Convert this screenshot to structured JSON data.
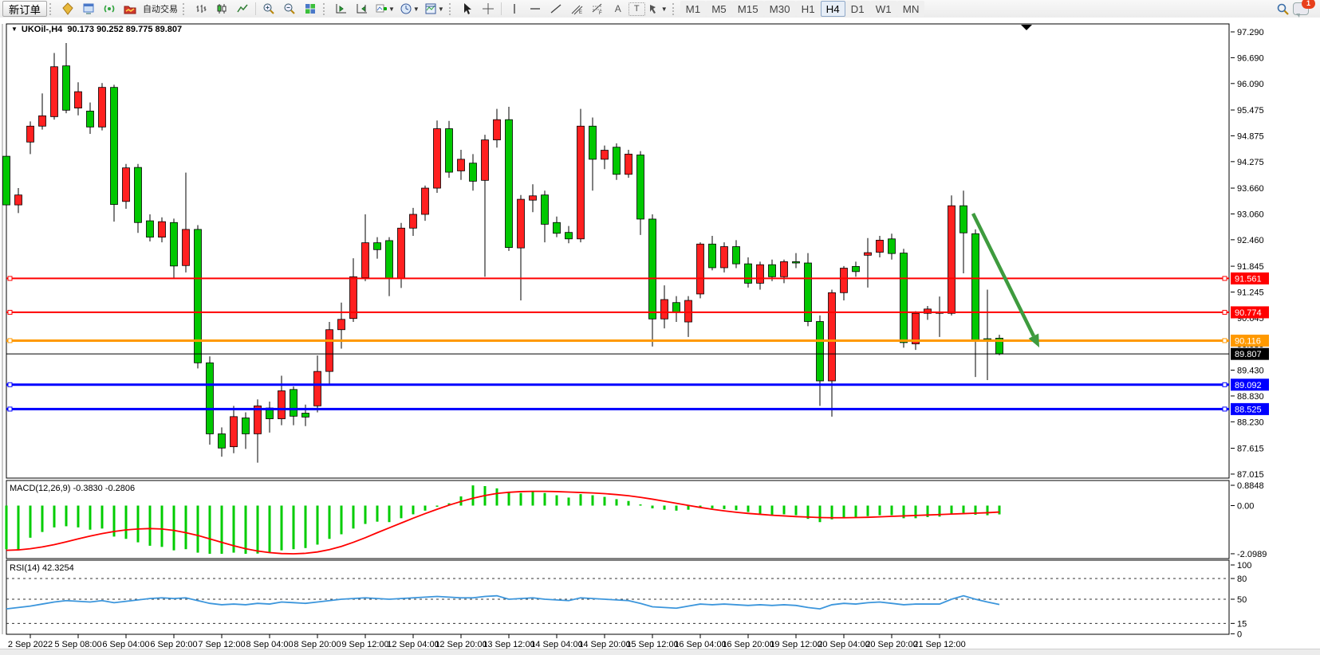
{
  "toolbar": {
    "new_order_label": "新订单",
    "auto_trading_label": "自动交易",
    "timeframes": [
      "M1",
      "M5",
      "M15",
      "M30",
      "H1",
      "H4",
      "D1",
      "W1",
      "MN"
    ],
    "active_timeframe": "H4",
    "notification_count": "1",
    "text_tool_label": "A",
    "label_tool_label": "T"
  },
  "chart": {
    "symbol": "UKOil-,H4",
    "ohlc_line": "90.173 90.252 89.775 89.807",
    "dropdown_marker": "▼",
    "colors": {
      "up": "#FF2020",
      "down": "#00C800",
      "wick": "#000000"
    },
    "price_axis_ticks": [
      "97.290",
      "96.690",
      "96.090",
      "95.475",
      "94.875",
      "94.275",
      "93.660",
      "93.060",
      "92.460",
      "91.845",
      "91.245",
      "90.645",
      "90.030",
      "89.430",
      "88.830",
      "88.230",
      "87.615",
      "87.015"
    ],
    "hlines": [
      {
        "price": 91.561,
        "label": "91.561",
        "color": "#FF0000",
        "w": 2
      },
      {
        "price": 90.774,
        "label": "90.774",
        "color": "#FF0000",
        "w": 2
      },
      {
        "price": 90.116,
        "label": "90.116",
        "color": "#FF9900",
        "w": 3
      },
      {
        "price": 89.807,
        "label": "89.807",
        "color": "#000000",
        "w": 1,
        "bid": true
      },
      {
        "price": 89.092,
        "label": "89.092",
        "color": "#0000FF",
        "w": 3
      },
      {
        "price": 88.525,
        "label": "88.525",
        "color": "#0000FF",
        "w": 3
      }
    ],
    "candles": [
      [
        94.4,
        94.92,
        93.15,
        93.27
      ],
      [
        93.27,
        93.66,
        93.08,
        93.5
      ],
      [
        94.73,
        95.21,
        94.45,
        95.1
      ],
      [
        95.1,
        95.86,
        95.02,
        95.34
      ],
      [
        95.32,
        96.8,
        95.25,
        96.48
      ],
      [
        96.5,
        97.03,
        95.4,
        95.47
      ],
      [
        95.52,
        96.12,
        95.35,
        95.9
      ],
      [
        95.45,
        95.65,
        94.92,
        95.08
      ],
      [
        95.08,
        96.1,
        95.0,
        96.0
      ],
      [
        96.0,
        96.06,
        92.88,
        93.28
      ],
      [
        93.35,
        94.22,
        93.18,
        94.13
      ],
      [
        94.14,
        94.22,
        92.62,
        92.86
      ],
      [
        92.9,
        93.05,
        92.42,
        92.52
      ],
      [
        92.52,
        92.98,
        92.4,
        92.88
      ],
      [
        92.86,
        92.95,
        91.55,
        91.85
      ],
      [
        91.86,
        94.02,
        91.7,
        92.7
      ],
      [
        92.7,
        92.8,
        89.47,
        89.6
      ],
      [
        89.6,
        89.75,
        87.7,
        87.95
      ],
      [
        87.95,
        88.1,
        87.42,
        87.62
      ],
      [
        87.65,
        88.6,
        87.5,
        88.35
      ],
      [
        88.32,
        88.45,
        87.6,
        87.95
      ],
      [
        87.95,
        88.75,
        87.28,
        88.6
      ],
      [
        88.55,
        88.7,
        87.98,
        88.3
      ],
      [
        88.3,
        89.3,
        88.15,
        88.95
      ],
      [
        88.98,
        89.05,
        88.15,
        88.36
      ],
      [
        88.43,
        88.63,
        88.13,
        88.34
      ],
      [
        88.6,
        89.77,
        88.45,
        89.4
      ],
      [
        89.4,
        90.55,
        89.1,
        90.37
      ],
      [
        90.37,
        91.0,
        89.93,
        90.61
      ],
      [
        90.63,
        92.03,
        90.55,
        91.6
      ],
      [
        91.58,
        93.05,
        91.5,
        92.39
      ],
      [
        92.39,
        92.52,
        92.02,
        92.23
      ],
      [
        92.44,
        92.52,
        91.15,
        91.56
      ],
      [
        91.56,
        92.85,
        91.34,
        92.73
      ],
      [
        92.73,
        93.2,
        92.55,
        93.05
      ],
      [
        93.05,
        93.72,
        92.9,
        93.66
      ],
      [
        93.66,
        95.23,
        93.55,
        95.04
      ],
      [
        95.04,
        95.22,
        93.9,
        94.03
      ],
      [
        94.06,
        94.55,
        93.85,
        94.33
      ],
      [
        94.24,
        94.45,
        93.6,
        93.82
      ],
      [
        93.84,
        94.9,
        91.6,
        94.78
      ],
      [
        94.78,
        95.5,
        94.6,
        95.25
      ],
      [
        95.25,
        95.55,
        92.2,
        92.28
      ],
      [
        92.27,
        93.5,
        91.05,
        93.4
      ],
      [
        93.38,
        93.75,
        93.1,
        93.48
      ],
      [
        93.5,
        93.6,
        92.4,
        92.82
      ],
      [
        92.86,
        93.0,
        92.52,
        92.61
      ],
      [
        92.63,
        92.78,
        92.38,
        92.48
      ],
      [
        92.48,
        95.5,
        92.4,
        95.1
      ],
      [
        95.1,
        95.3,
        93.6,
        94.33
      ],
      [
        94.33,
        94.65,
        94.1,
        94.54
      ],
      [
        94.61,
        94.7,
        93.85,
        93.98
      ],
      [
        93.98,
        94.55,
        93.9,
        94.45
      ],
      [
        94.43,
        94.52,
        92.57,
        92.94
      ],
      [
        92.94,
        93.05,
        89.98,
        90.62
      ],
      [
        90.62,
        91.4,
        90.4,
        91.07
      ],
      [
        91.0,
        91.15,
        90.55,
        90.77
      ],
      [
        90.55,
        91.15,
        90.2,
        91.05
      ],
      [
        91.2,
        92.4,
        91.1,
        92.36
      ],
      [
        92.36,
        92.55,
        91.75,
        91.81
      ],
      [
        91.81,
        92.4,
        91.7,
        92.3
      ],
      [
        92.3,
        92.45,
        91.8,
        91.9
      ],
      [
        91.9,
        92.05,
        91.35,
        91.45
      ],
      [
        91.45,
        91.95,
        91.3,
        91.88
      ],
      [
        91.88,
        92.0,
        91.5,
        91.6
      ],
      [
        91.6,
        92.0,
        91.45,
        91.95
      ],
      [
        91.95,
        92.15,
        91.8,
        91.92
      ],
      [
        91.92,
        92.15,
        90.45,
        90.56
      ],
      [
        90.56,
        90.7,
        88.6,
        89.18
      ],
      [
        89.18,
        91.3,
        88.35,
        91.23
      ],
      [
        91.23,
        91.85,
        91.05,
        91.8
      ],
      [
        91.84,
        91.95,
        91.6,
        91.72
      ],
      [
        92.1,
        92.5,
        91.35,
        92.16
      ],
      [
        92.17,
        92.55,
        92.05,
        92.45
      ],
      [
        92.48,
        92.6,
        92.0,
        92.14
      ],
      [
        92.15,
        92.25,
        89.95,
        90.07
      ],
      [
        90.04,
        90.8,
        89.9,
        90.75
      ],
      [
        90.75,
        90.92,
        90.6,
        90.85
      ],
      [
        90.76,
        91.14,
        90.2,
        90.78
      ],
      [
        90.75,
        93.49,
        90.7,
        93.25
      ],
      [
        93.25,
        93.6,
        91.68,
        92.62
      ],
      [
        92.6,
        92.7,
        89.27,
        90.13
      ],
      [
        90.16,
        91.3,
        89.2,
        90.12
      ],
      [
        90.173,
        90.252,
        89.775,
        89.807
      ]
    ],
    "arrow": {
      "from": [
        1220,
        268
      ],
      "to": [
        1303,
        436
      ],
      "color": "#3E9B3E"
    }
  },
  "macd": {
    "name": "MACD(12,26,9)",
    "values": "-0.3830 -0.2806",
    "axis_labels": [
      "0.8848",
      "0.00",
      "-2.0989"
    ],
    "axis_values": [
      0.8848,
      0.0,
      -2.0989
    ],
    "histogram_color": "#00CC00",
    "signal_color": "#FF0000",
    "histogram": [
      -1.9,
      -1.95,
      -1.4,
      -1.15,
      -0.95,
      -0.9,
      -0.95,
      -1.05,
      -1.0,
      -1.35,
      -1.45,
      -1.6,
      -1.75,
      -1.8,
      -1.95,
      -1.9,
      -2.05,
      -2.1,
      -2.1,
      -2.05,
      -2.1,
      -2.09,
      -2.05,
      -1.95,
      -1.9,
      -1.85,
      -1.7,
      -1.45,
      -1.25,
      -1.0,
      -0.8,
      -0.7,
      -0.72,
      -0.55,
      -0.38,
      -0.22,
      -0.05,
      0.1,
      0.4,
      0.88,
      0.85,
      0.75,
      0.6,
      0.55,
      0.6,
      0.55,
      0.45,
      0.35,
      0.5,
      0.45,
      0.38,
      0.28,
      0.2,
      0.05,
      -0.12,
      -0.18,
      -0.22,
      -0.18,
      -0.1,
      -0.12,
      -0.15,
      -0.2,
      -0.28,
      -0.35,
      -0.4,
      -0.38,
      -0.42,
      -0.58,
      -0.72,
      -0.6,
      -0.52,
      -0.5,
      -0.46,
      -0.42,
      -0.42,
      -0.55,
      -0.55,
      -0.5,
      -0.48,
      -0.35,
      -0.32,
      -0.4,
      -0.42,
      -0.383
    ],
    "signal": [
      -1.95,
      -1.93,
      -1.88,
      -1.8,
      -1.7,
      -1.58,
      -1.45,
      -1.33,
      -1.22,
      -1.13,
      -1.06,
      -1.02,
      -1.0,
      -1.02,
      -1.08,
      -1.18,
      -1.3,
      -1.45,
      -1.6,
      -1.75,
      -1.88,
      -1.98,
      -2.05,
      -2.09,
      -2.1,
      -2.08,
      -2.02,
      -1.92,
      -1.78,
      -1.6,
      -1.4,
      -1.18,
      -0.97,
      -0.76,
      -0.55,
      -0.35,
      -0.16,
      0.02,
      0.18,
      0.32,
      0.44,
      0.53,
      0.58,
      0.61,
      0.62,
      0.62,
      0.61,
      0.59,
      0.57,
      0.55,
      0.52,
      0.48,
      0.43,
      0.36,
      0.28,
      0.19,
      0.1,
      0.01,
      -0.08,
      -0.16,
      -0.23,
      -0.29,
      -0.34,
      -0.38,
      -0.42,
      -0.45,
      -0.48,
      -0.5,
      -0.52,
      -0.53,
      -0.53,
      -0.52,
      -0.51,
      -0.49,
      -0.47,
      -0.45,
      -0.43,
      -0.41,
      -0.39,
      -0.37,
      -0.35,
      -0.33,
      -0.31,
      -0.2806
    ]
  },
  "rsi": {
    "name": "RSI(14)",
    "value": "42.3254",
    "line_color": "#3C96DC",
    "levels": [
      80,
      50,
      15
    ],
    "axis_labels": [
      "100",
      "80",
      "50",
      "15",
      "0"
    ],
    "axis_values": [
      100,
      80,
      50,
      15,
      0
    ],
    "values": [
      36,
      38,
      40,
      43,
      46,
      48,
      47,
      46,
      48,
      45,
      47,
      49,
      51,
      52,
      51,
      52,
      48,
      44,
      42,
      43,
      42,
      44,
      43,
      46,
      45,
      44,
      46,
      48,
      50,
      51,
      52,
      51,
      50,
      51,
      52,
      53,
      54,
      53,
      52,
      52,
      54,
      55,
      50,
      51,
      52,
      50,
      49,
      48,
      52,
      51,
      50,
      49,
      48,
      44,
      39,
      38,
      37,
      40,
      43,
      42,
      43,
      42,
      41,
      42,
      41,
      42,
      41,
      38,
      36,
      42,
      44,
      43,
      45,
      46,
      44,
      42,
      43,
      43,
      43,
      50,
      55,
      50,
      46,
      42.3
    ]
  },
  "date_axis": [
    "2 Sep 2022",
    "5 Sep 08:00",
    "6 Sep 04:00",
    "6 Sep 20:00",
    "7 Sep 12:00",
    "8 Sep 04:00",
    "8 Sep 20:00",
    "9 Sep 12:00",
    "12 Sep 04:00",
    "12 Sep 20:00",
    "13 Sep 12:00",
    "14 Sep 04:00",
    "14 Sep 20:00",
    "15 Sep 12:00",
    "16 Sep 04:00",
    "16 Sep 20:00",
    "19 Sep 12:00",
    "20 Sep 04:00",
    "20 Sep 20:00",
    "21 Sep 12:00"
  ]
}
